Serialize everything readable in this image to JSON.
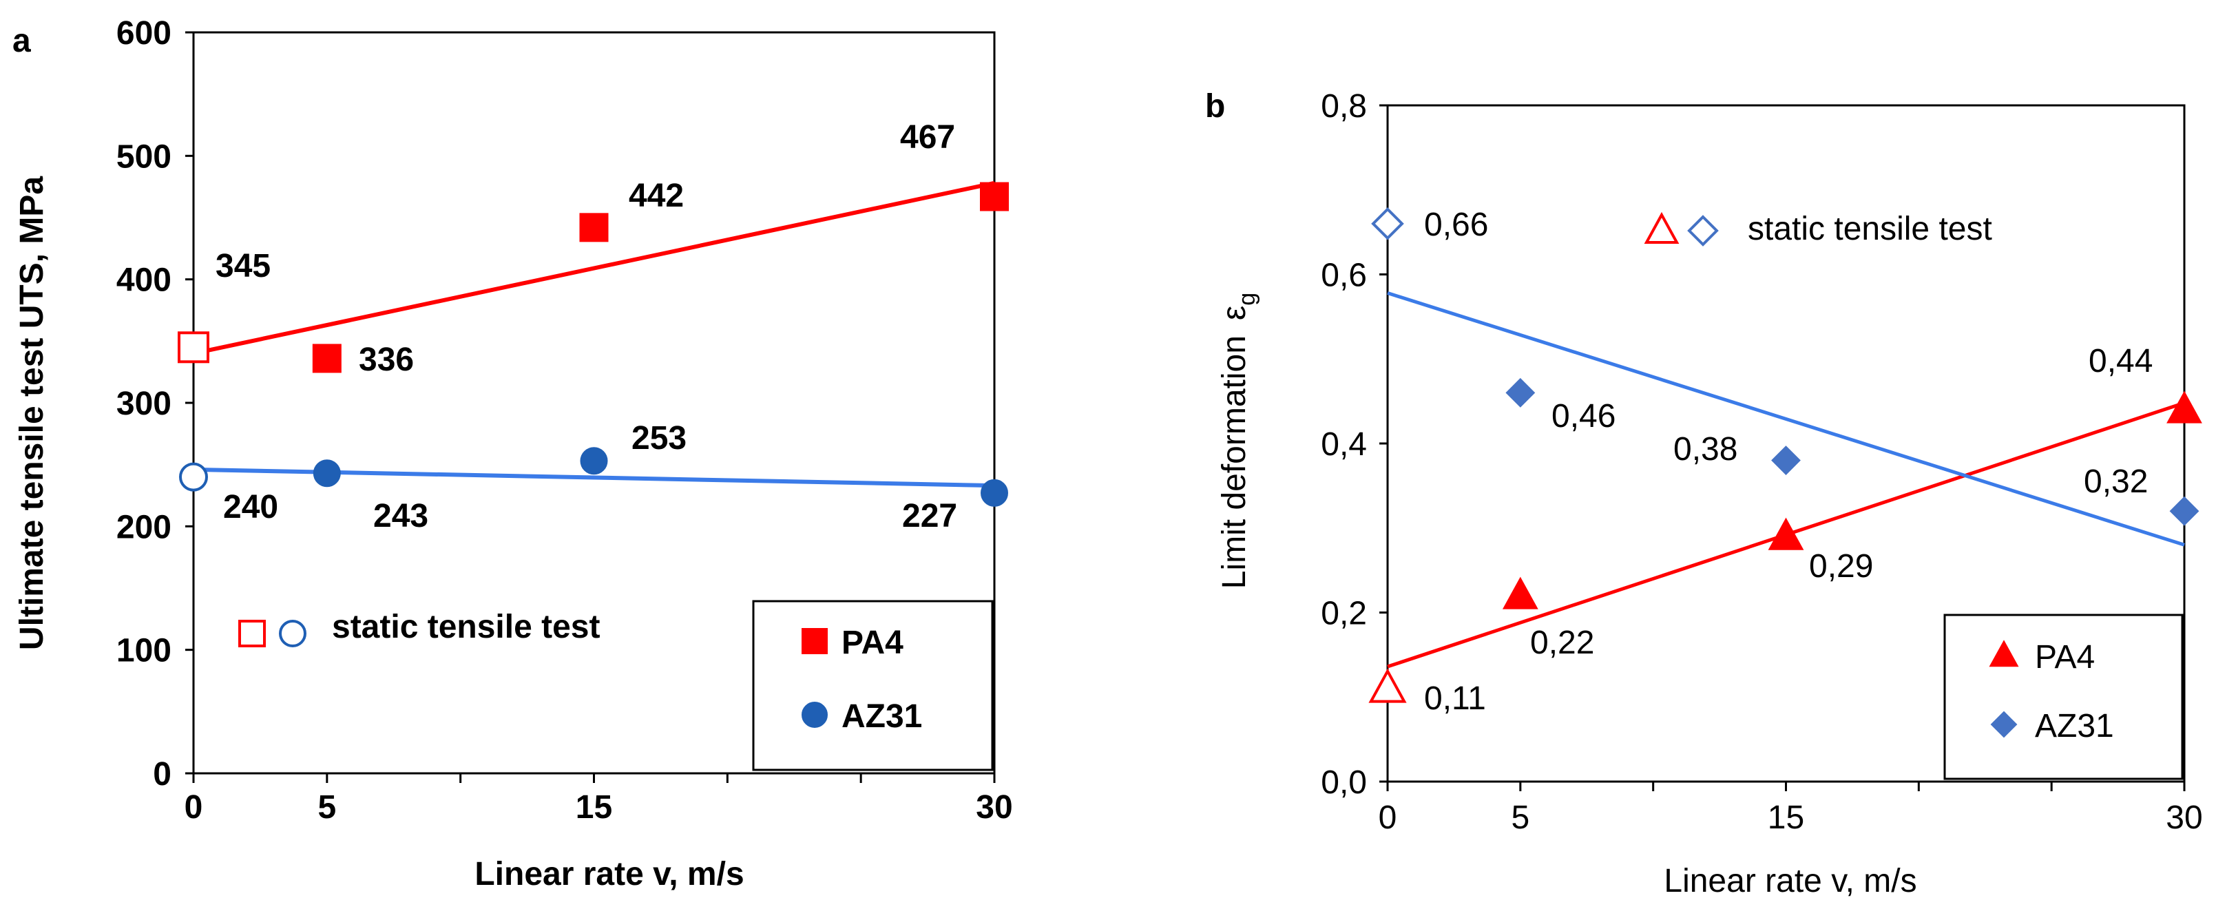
{
  "chart_data": [
    {
      "id": "a",
      "panel_label": "a",
      "type": "scatter",
      "ylabel": "Ultimate tensile test UTS, MPa",
      "xlabel": "Linear rate  v,  m/s",
      "xlim": [
        0,
        30
      ],
      "ylim": [
        0,
        600
      ],
      "x_ticks": [
        0,
        5,
        15,
        30
      ],
      "x_tick_labels": [
        "0",
        "5",
        "15",
        "30"
      ],
      "x_minor_ticks": [
        10,
        20,
        25
      ],
      "y_ticks": [
        0,
        100,
        200,
        300,
        400,
        500,
        600
      ],
      "y_tick_labels": [
        "0",
        "100",
        "200",
        "300",
        "400",
        "500",
        "600"
      ],
      "series": [
        {
          "name": "PA4",
          "marker": "square",
          "color": "#ff0000",
          "x": [
            5,
            15,
            30
          ],
          "y": [
            336,
            442,
            467
          ],
          "labels": [
            "336",
            "442",
            "467"
          ],
          "static_point": {
            "x": 0,
            "y": 345,
            "label": "345"
          },
          "trend_line": {
            "x": [
              0,
              30
            ],
            "y": [
              340,
              478
            ]
          }
        },
        {
          "name": "AZ31",
          "marker": "circle",
          "color": "#1f5fb4",
          "x": [
            5,
            15,
            30
          ],
          "y": [
            243,
            253,
            227
          ],
          "labels": [
            "243",
            "253",
            "227"
          ],
          "static_point": {
            "x": 0,
            "y": 240,
            "label": "240"
          },
          "trend_line": {
            "x": [
              0,
              30
            ],
            "y": [
              246,
              233
            ]
          }
        }
      ],
      "static_legend": "static tensile test",
      "legend": [
        "PA4",
        "AZ31"
      ],
      "trend_colors": {
        "PA4": "#ff0000",
        "AZ31": "#3b7be8"
      }
    },
    {
      "id": "b",
      "panel_label": "b",
      "type": "scatter",
      "ylabel": "Limit deformation",
      "ylabel_symbol": "ε",
      "ylabel_subscript": "g",
      "xlabel": "Linear rate  v,  m/s",
      "xlim": [
        0,
        30
      ],
      "ylim": [
        0,
        0.8
      ],
      "x_ticks": [
        0,
        5,
        15,
        30
      ],
      "x_tick_labels": [
        "0",
        "5",
        "15",
        "30"
      ],
      "x_minor_ticks": [
        10,
        20,
        25
      ],
      "y_ticks": [
        0,
        0.2,
        0.4,
        0.6,
        0.8
      ],
      "y_tick_labels": [
        "0,0",
        "0,2",
        "0,4",
        "0,6",
        "0,8"
      ],
      "series": [
        {
          "name": "PA4",
          "marker": "triangle",
          "color": "#ff0000",
          "x": [
            5,
            15,
            30
          ],
          "y": [
            0.22,
            0.29,
            0.44
          ],
          "labels": [
            "0,22",
            "0,29",
            "0,44"
          ],
          "static_point": {
            "x": 0,
            "y": 0.11,
            "label": "0,11"
          },
          "trend_line": {
            "x": [
              0,
              30
            ],
            "y": [
              0.136,
              0.448
            ]
          }
        },
        {
          "name": "AZ31",
          "marker": "diamond",
          "color": "#4472c4",
          "x": [
            5,
            15,
            30
          ],
          "y": [
            0.46,
            0.38,
            0.32
          ],
          "labels": [
            "0,46",
            "0,38",
            "0,32"
          ],
          "static_point": {
            "x": 0,
            "y": 0.66,
            "label": "0,66"
          },
          "trend_line": {
            "x": [
              0,
              30
            ],
            "y": [
              0.578,
              0.28
            ]
          }
        }
      ],
      "static_legend": "static tensile test",
      "legend": [
        "PA4",
        "AZ31"
      ],
      "trend_colors": {
        "PA4": "#ff0000",
        "AZ31": "#3b7be8"
      }
    }
  ]
}
